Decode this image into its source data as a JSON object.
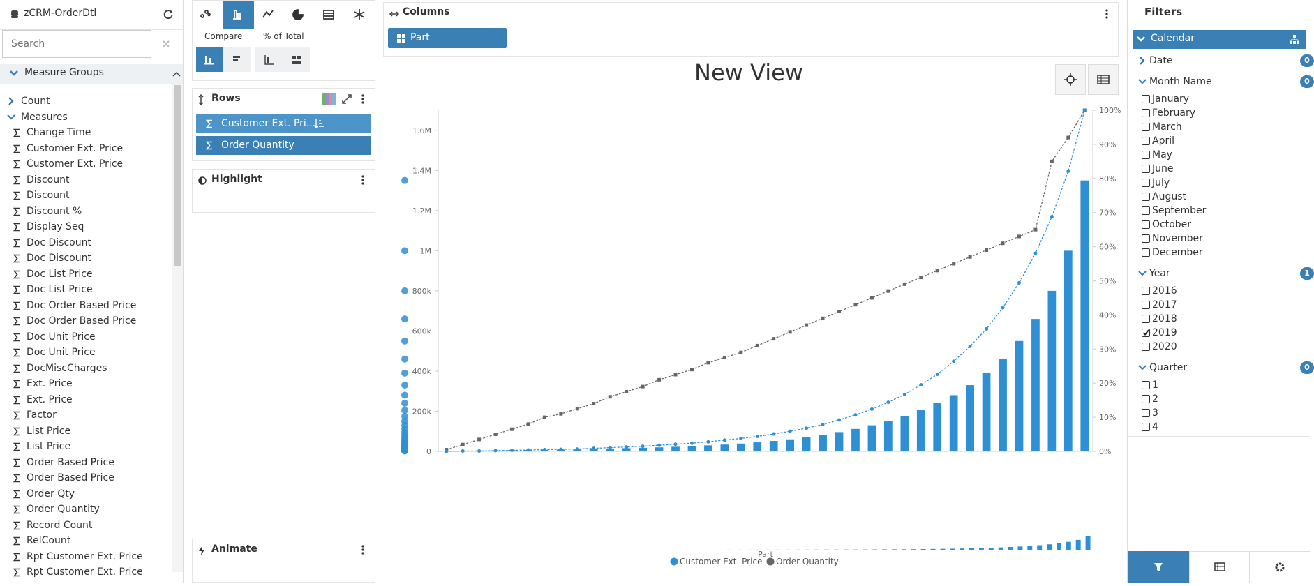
{
  "sidebar": {
    "title": "zCRM-OrderDtl",
    "search_placeholder": "Search",
    "section": "Measure Groups",
    "groups": [
      "Count",
      "Measures"
    ],
    "measures": [
      "Change Time",
      "Customer Ext. Price",
      "Customer Ext. Price",
      "Discount",
      "Discount",
      "Discount %",
      "Display Seq",
      "Doc Discount",
      "Doc Discount",
      "Doc List Price",
      "Doc List Price",
      "Doc Order Based Price",
      "Doc Order Based Price",
      "Doc Unit Price",
      "Doc Unit Price",
      "DocMiscCharges",
      "Ext. Price",
      "Ext. Price",
      "Factor",
      "List Price",
      "List Price",
      "Order Based Price",
      "Order Based Price",
      "Order Qty",
      "Order Quantity",
      "Record Count",
      "RelCount",
      "Rpt Customer Ext. Price",
      "Rpt Customer Ext. Price"
    ]
  },
  "toolbar": {
    "compare": "Compare",
    "percent": "% of Total"
  },
  "rows": {
    "title": "Rows",
    "items": [
      "Customer Ext. Pri...",
      "Order Quantity"
    ]
  },
  "highlight": {
    "title": "Highlight"
  },
  "animate": {
    "title": "Animate"
  },
  "columns": {
    "title": "Columns",
    "items": [
      "Part"
    ]
  },
  "chart_data": {
    "type": "pareto",
    "title": "New View",
    "x_label": "Part",
    "series": [
      {
        "name": "Customer Ext. Price",
        "color": "#2f8fd5",
        "values": [
          2000,
          3000,
          4000,
          5000,
          6000,
          7000,
          8000,
          9000,
          10000,
          12000,
          14000,
          16000,
          18000,
          20000,
          23000,
          26000,
          30000,
          34000,
          39000,
          45000,
          52000,
          60000,
          70000,
          82000,
          96000,
          112000,
          130000,
          150000,
          175000,
          205000,
          240000,
          280000,
          330000,
          390000,
          460000,
          550000,
          660000,
          800000,
          1000000,
          1350000
        ]
      },
      {
        "name": "Order Quantity",
        "color": "#666666",
        "values": [
          0.5,
          2,
          3.5,
          5,
          6.5,
          8,
          10,
          11,
          12.5,
          14,
          16,
          17.5,
          19,
          21,
          22.5,
          24,
          26,
          27.5,
          29,
          31,
          33,
          35,
          37,
          39,
          41,
          43,
          45,
          47,
          49,
          51,
          53,
          55,
          57,
          59,
          61,
          63,
          65,
          85,
          92,
          100
        ],
        "axis": "y2"
      }
    ],
    "cumulative": {
      "color": "#2f8fd5",
      "axis": "y2",
      "values": [
        0,
        0.1,
        0.1,
        0.2,
        0.3,
        0.4,
        0.5,
        0.6,
        0.7,
        0.9,
        1.1,
        1.3,
        1.5,
        1.8,
        2.1,
        2.4,
        2.8,
        3.3,
        3.8,
        4.4,
        5.1,
        5.9,
        6.8,
        7.9,
        9.2,
        10.7,
        12.4,
        14.4,
        16.7,
        19.5,
        22.6,
        26.4,
        30.8,
        35.9,
        42.1,
        49.4,
        58.1,
        68.8,
        82.1,
        100
      ]
    },
    "ylim": [
      0,
      1700000
    ],
    "yticks": [
      0,
      {
        "value": 200000,
        "label": "200k"
      },
      {
        "value": 400000,
        "label": "400k"
      },
      {
        "value": 600000,
        "label": "600k"
      },
      {
        "value": 800000,
        "label": "800k"
      },
      {
        "value": 1000000,
        "label": "1M"
      },
      {
        "value": 1200000,
        "label": "1.2M"
      },
      {
        "value": 1400000,
        "label": "1.4M"
      },
      {
        "value": 1600000,
        "label": "1.6M"
      }
    ],
    "y2lim": [
      0,
      100
    ],
    "y2ticks": [
      {
        "value": 0,
        "label": "0%"
      },
      {
        "value": 10,
        "label": "10%"
      },
      {
        "value": 20,
        "label": "20%"
      },
      {
        "value": 30,
        "label": "30%"
      },
      {
        "value": 40,
        "label": "40%"
      },
      {
        "value": 50,
        "label": "50%"
      },
      {
        "value": 60,
        "label": "60%"
      },
      {
        "value": 70,
        "label": "70%"
      },
      {
        "value": 80,
        "label": "80%"
      },
      {
        "value": 90,
        "label": "90%"
      },
      {
        "value": 100,
        "label": "100%"
      }
    ]
  },
  "filters": {
    "title": "Filters",
    "calendar": "Calendar",
    "groups": [
      {
        "name": "Date",
        "count": 0,
        "options": [],
        "checked": []
      },
      {
        "name": "Month Name",
        "count": 0,
        "options": [
          "January",
          "February",
          "March",
          "April",
          "May",
          "June",
          "July",
          "August",
          "September",
          "October",
          "November",
          "December"
        ],
        "checked": [
          false,
          false,
          false,
          false,
          false,
          false,
          false,
          false,
          false,
          false,
          false,
          false
        ]
      },
      {
        "name": "Year",
        "count": 1,
        "options": [
          "2016",
          "2017",
          "2018",
          "2019",
          "2020"
        ],
        "checked": [
          false,
          false,
          false,
          true,
          false
        ]
      },
      {
        "name": "Quarter",
        "count": 0,
        "options": [
          "1",
          "2",
          "3",
          "4"
        ],
        "checked": [
          false,
          false,
          false,
          false
        ]
      }
    ]
  }
}
